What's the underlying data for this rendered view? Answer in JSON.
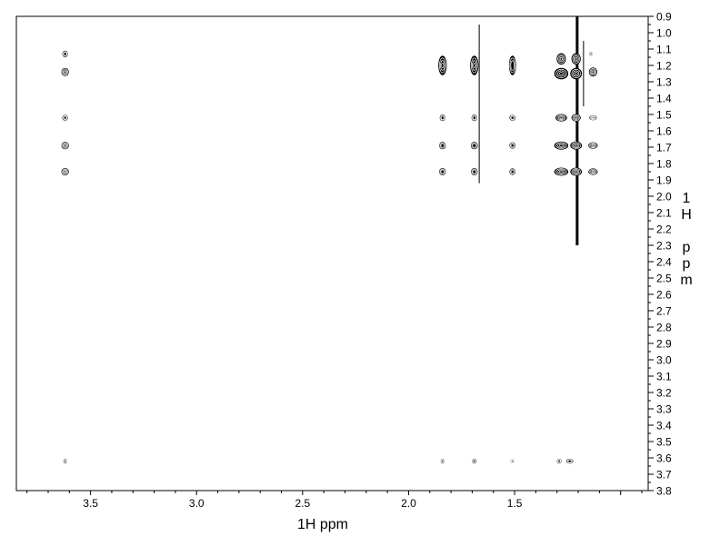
{
  "chart_data": {
    "type": "contour",
    "xlabel": "1H ppm",
    "ylabel": "1H ppm",
    "xlim": [
      3.85,
      0.87
    ],
    "ylim": [
      0.9,
      3.8
    ],
    "x_ticks": [
      "3.5",
      "3.0",
      "2.5",
      "2.0",
      "1.5"
    ],
    "y_ticks": [
      "0.9",
      "1.0",
      "1.1",
      "1.2",
      "1.3",
      "1.4",
      "1.5",
      "1.6",
      "1.7",
      "1.8",
      "1.9",
      "2.0",
      "2.1",
      "2.2",
      "2.3",
      "2.4",
      "2.5",
      "2.6",
      "2.7",
      "2.8",
      "2.9",
      "3.0",
      "3.1",
      "3.2",
      "3.3",
      "3.4",
      "3.5",
      "3.6",
      "3.7",
      "3.8"
    ],
    "grid": false,
    "color": "#000000",
    "peaks": [
      {
        "f2": 3.62,
        "f1": 1.13,
        "w": 0.012,
        "h": 0.04
      },
      {
        "f2": 3.62,
        "f1": 1.24,
        "w": 0.016,
        "h": 0.05
      },
      {
        "f2": 3.62,
        "f1": 1.52,
        "w": 0.012,
        "h": 0.035
      },
      {
        "f2": 3.62,
        "f1": 1.69,
        "w": 0.016,
        "h": 0.045
      },
      {
        "f2": 3.62,
        "f1": 1.85,
        "w": 0.016,
        "h": 0.045
      },
      {
        "f2": 3.62,
        "f1": 3.62,
        "w": 0.008,
        "h": 0.03
      },
      {
        "f2": 1.84,
        "f1": 1.2,
        "w": 0.018,
        "h": 0.12
      },
      {
        "f2": 1.84,
        "f1": 1.52,
        "w": 0.012,
        "h": 0.04
      },
      {
        "f2": 1.84,
        "f1": 1.69,
        "w": 0.014,
        "h": 0.045
      },
      {
        "f2": 1.84,
        "f1": 1.85,
        "w": 0.014,
        "h": 0.045
      },
      {
        "f2": 1.84,
        "f1": 3.62,
        "w": 0.008,
        "h": 0.03
      },
      {
        "f2": 1.69,
        "f1": 1.2,
        "w": 0.018,
        "h": 0.12
      },
      {
        "f2": 1.69,
        "f1": 1.52,
        "w": 0.012,
        "h": 0.04
      },
      {
        "f2": 1.69,
        "f1": 1.69,
        "w": 0.015,
        "h": 0.045
      },
      {
        "f2": 1.69,
        "f1": 1.85,
        "w": 0.014,
        "h": 0.045
      },
      {
        "f2": 1.69,
        "f1": 3.62,
        "w": 0.01,
        "h": 0.03
      },
      {
        "f2": 1.51,
        "f1": 1.2,
        "w": 0.015,
        "h": 0.12
      },
      {
        "f2": 1.51,
        "f1": 1.52,
        "w": 0.013,
        "h": 0.035
      },
      {
        "f2": 1.51,
        "f1": 1.69,
        "w": 0.013,
        "h": 0.04
      },
      {
        "f2": 1.51,
        "f1": 1.85,
        "w": 0.013,
        "h": 0.04
      },
      {
        "f2": 1.51,
        "f1": 3.62,
        "w": 0.004,
        "h": 0.02
      },
      {
        "f2": 1.28,
        "f1": 1.16,
        "w": 0.02,
        "h": 0.07
      },
      {
        "f2": 1.21,
        "f1": 1.16,
        "w": 0.02,
        "h": 0.07
      },
      {
        "f2": 1.28,
        "f1": 1.25,
        "w": 0.03,
        "h": 0.07
      },
      {
        "f2": 1.21,
        "f1": 1.25,
        "w": 0.025,
        "h": 0.07
      },
      {
        "f2": 1.28,
        "f1": 1.52,
        "w": 0.025,
        "h": 0.045
      },
      {
        "f2": 1.21,
        "f1": 1.52,
        "w": 0.02,
        "h": 0.045
      },
      {
        "f2": 1.28,
        "f1": 1.69,
        "w": 0.03,
        "h": 0.05
      },
      {
        "f2": 1.21,
        "f1": 1.69,
        "w": 0.025,
        "h": 0.05
      },
      {
        "f2": 1.28,
        "f1": 1.85,
        "w": 0.03,
        "h": 0.05
      },
      {
        "f2": 1.21,
        "f1": 1.85,
        "w": 0.025,
        "h": 0.05
      },
      {
        "f2": 1.29,
        "f1": 3.62,
        "w": 0.01,
        "h": 0.03
      },
      {
        "f2": 1.24,
        "f1": 3.62,
        "w": 0.015,
        "h": 0.03
      },
      {
        "f2": 1.14,
        "f1": 1.13,
        "w": 0.006,
        "h": 0.025
      },
      {
        "f2": 1.13,
        "f1": 1.24,
        "w": 0.018,
        "h": 0.055
      },
      {
        "f2": 1.13,
        "f1": 1.52,
        "w": 0.016,
        "h": 0.03
      },
      {
        "f2": 1.13,
        "f1": 1.69,
        "w": 0.02,
        "h": 0.04
      },
      {
        "f2": 1.13,
        "f1": 1.85,
        "w": 0.02,
        "h": 0.04
      }
    ],
    "t1_noise": [
      {
        "f2": 1.667,
        "f1_from": 0.95,
        "f1_to": 1.92,
        "width": 1
      },
      {
        "f2": 1.205,
        "f1_from": 0.9,
        "f1_to": 2.3,
        "width": 3
      },
      {
        "f2": 1.175,
        "f1_from": 1.05,
        "f1_to": 1.45,
        "width": 1
      }
    ]
  }
}
